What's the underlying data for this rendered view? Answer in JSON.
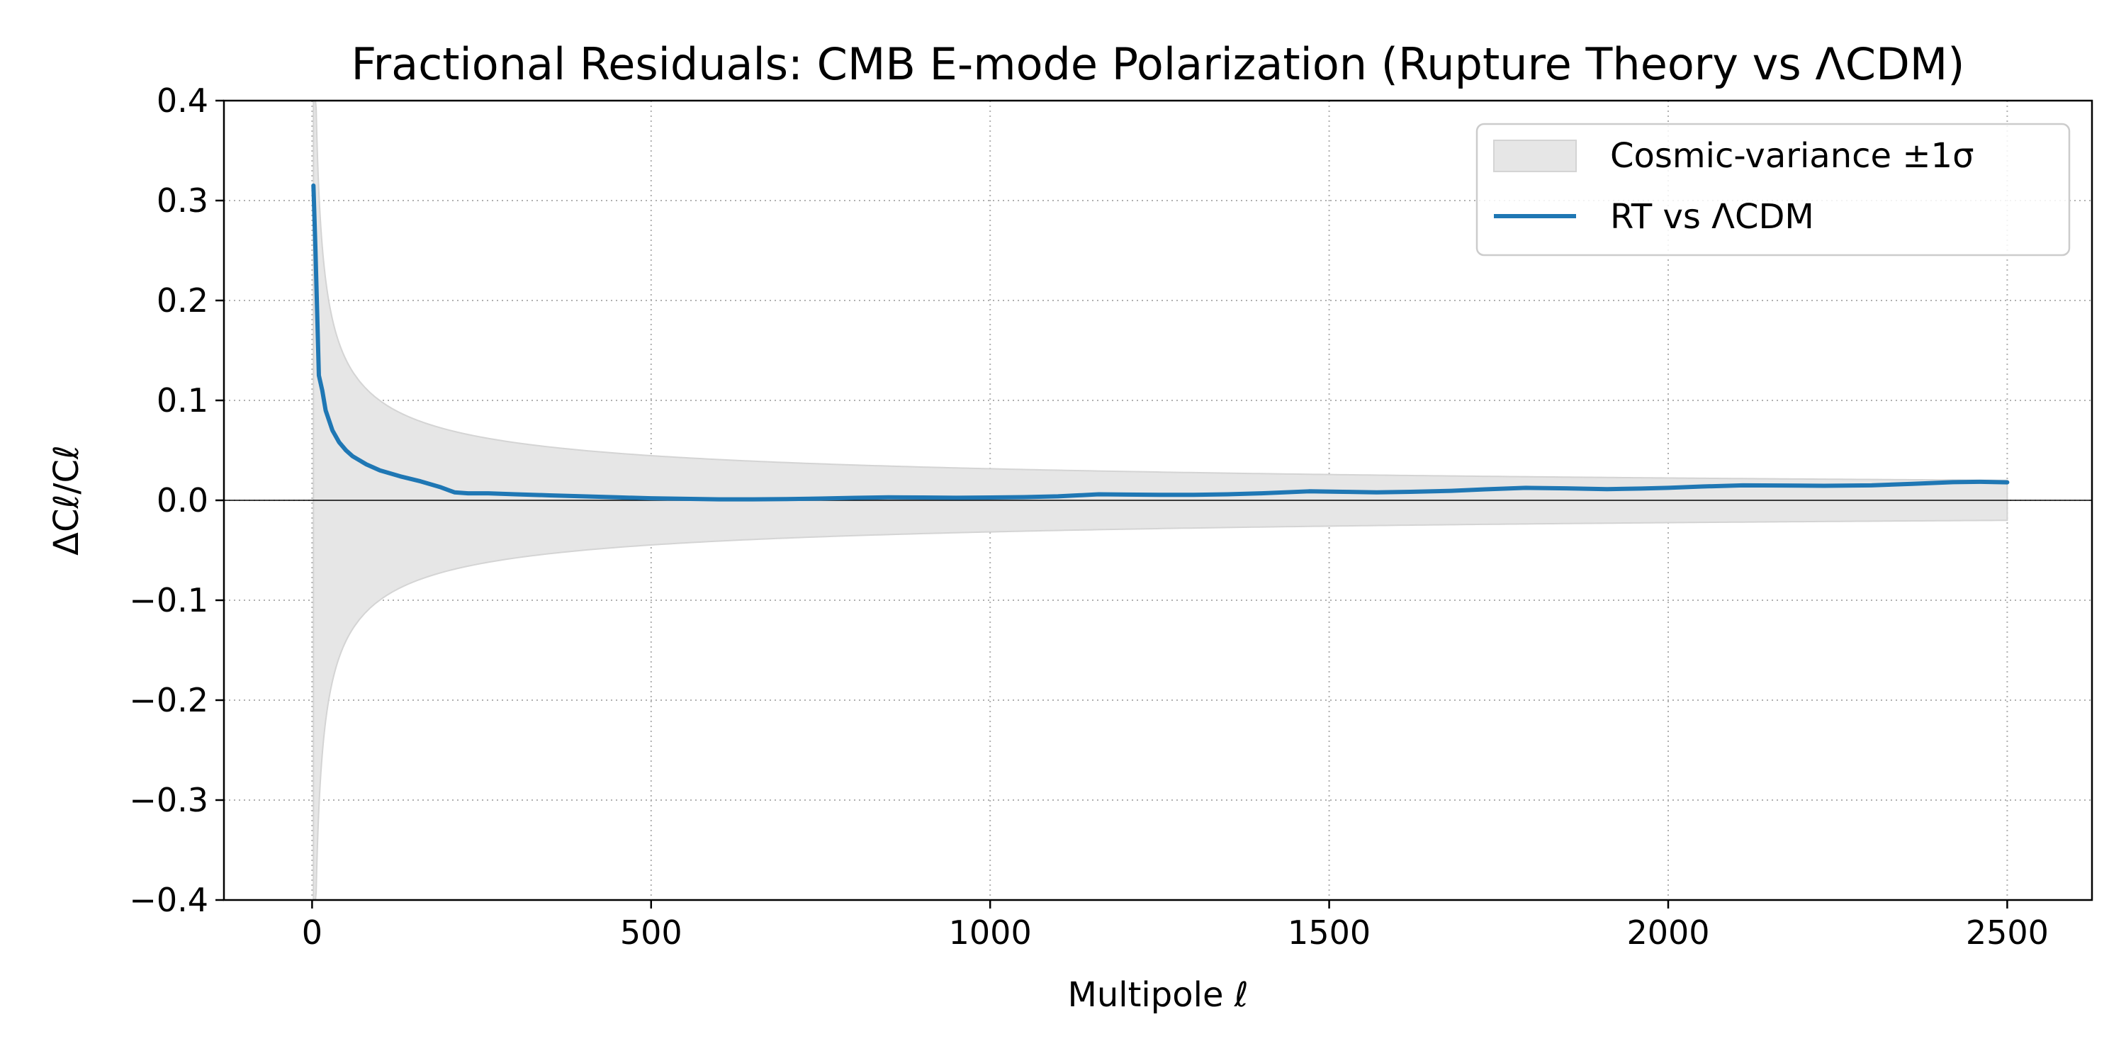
{
  "chart_data": {
    "type": "line",
    "title": "Fractional Residuals: CMB E-mode Polarization (Rupture Theory vs ΛCDM)",
    "xlabel": "Multipole ℓ",
    "ylabel": "ΔCℓ/Cℓ",
    "xlim": [
      -130,
      2625
    ],
    "ylim": [
      -0.4,
      0.4
    ],
    "xticks": [
      0,
      500,
      1000,
      1500,
      2000,
      2500
    ],
    "xtick_labels": [
      "0",
      "500",
      "1000",
      "1500",
      "2000",
      "2500"
    ],
    "yticks": [
      -0.4,
      -0.3,
      -0.2,
      -0.1,
      0.0,
      0.1,
      0.2,
      0.3,
      0.4
    ],
    "ytick_labels": [
      "−0.4",
      "−0.3",
      "−0.2",
      "−0.1",
      "0.0",
      "0.1",
      "0.2",
      "0.3",
      "0.4"
    ],
    "grid": true,
    "grid_style": "dotted",
    "legend_position": "top-right",
    "zero_line": true,
    "band": {
      "name": "Cosmic-variance ±1σ",
      "color": "#e6e6e6",
      "edge_color": "#d4d4d4",
      "formula": "sqrt(2/(2ℓ+1))",
      "x_range": [
        2,
        2500
      ]
    },
    "series": [
      {
        "name": "RT vs ΛCDM",
        "color": "#1f77b4",
        "x": [
          2,
          5,
          10,
          15,
          20,
          30,
          40,
          50,
          60,
          80,
          100,
          130,
          160,
          190,
          210,
          230,
          260,
          300,
          350,
          400,
          450,
          500,
          550,
          600,
          650,
          700,
          750,
          800,
          850,
          900,
          950,
          1000,
          1050,
          1100,
          1160,
          1200,
          1250,
          1300,
          1350,
          1400,
          1470,
          1520,
          1570,
          1620,
          1680,
          1730,
          1790,
          1850,
          1910,
          1960,
          2000,
          2050,
          2110,
          2170,
          2230,
          2300,
          2360,
          2420,
          2460,
          2500
        ],
        "y": [
          0.315,
          0.25,
          0.125,
          0.11,
          0.09,
          0.07,
          0.058,
          0.05,
          0.044,
          0.036,
          0.03,
          0.024,
          0.019,
          0.013,
          0.008,
          0.007,
          0.007,
          0.006,
          0.005,
          0.004,
          0.003,
          0.002,
          0.0015,
          0.001,
          0.001,
          0.0012,
          0.0018,
          0.0025,
          0.003,
          0.0028,
          0.0026,
          0.0028,
          0.0032,
          0.004,
          0.006,
          0.0058,
          0.0055,
          0.0055,
          0.006,
          0.007,
          0.009,
          0.0085,
          0.008,
          0.0085,
          0.0095,
          0.011,
          0.0125,
          0.012,
          0.0112,
          0.0118,
          0.0125,
          0.0138,
          0.015,
          0.0148,
          0.0145,
          0.015,
          0.0165,
          0.0182,
          0.0185,
          0.018
        ]
      }
    ]
  }
}
